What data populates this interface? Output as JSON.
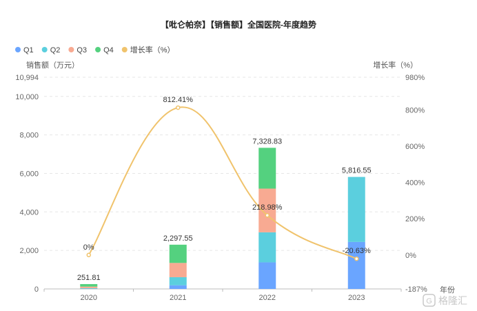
{
  "chart_data": {
    "type": "bar",
    "stacked": true,
    "title": "【吡仑帕奈】【销售额】全国医院-年度趋势",
    "categories": [
      "2020",
      "2021",
      "2022",
      "2023"
    ],
    "series": [
      {
        "name": "Q1",
        "type": "bar",
        "axis": "left",
        "color": "#6aa5ff",
        "values": [
          10,
          190,
          1380,
          2440
        ]
      },
      {
        "name": "Q2",
        "type": "bar",
        "axis": "left",
        "color": "#5bcfde",
        "values": [
          30,
          420,
          1560,
          3376.55
        ]
      },
      {
        "name": "Q3",
        "type": "bar",
        "axis": "left",
        "color": "#f8aa92",
        "values": [
          80,
          740,
          2270,
          0
        ]
      },
      {
        "name": "Q4",
        "type": "bar",
        "axis": "left",
        "color": "#54d17f",
        "values": [
          131.81,
          947.55,
          2118.83,
          0
        ]
      },
      {
        "name": "增长率（%）",
        "type": "line",
        "axis": "right",
        "color": "#f0c36c",
        "values": [
          0,
          812.41,
          218.98,
          -20.63
        ]
      }
    ],
    "totals": [
      251.81,
      2297.55,
      7328.83,
      5816.55
    ],
    "total_labels": [
      "251.81",
      "2,297.55",
      "7,328.83",
      "5,816.55"
    ],
    "growth_labels": [
      "0%",
      "812.41%",
      "218.98%",
      "-20.63%"
    ],
    "ylabel": "销售额（万元）",
    "y2label": "增长率（%）",
    "xlabel": "年份",
    "ylim": [
      0,
      10994
    ],
    "y2lim": [
      -187,
      980
    ],
    "y_ticks": [
      0,
      2000,
      4000,
      6000,
      8000,
      10000,
      10994
    ],
    "y_tick_labels": [
      "0",
      "2,000",
      "4,000",
      "6,000",
      "8,000",
      "10,000",
      "10,994"
    ],
    "y2_ticks": [
      -187,
      0,
      200,
      400,
      600,
      800,
      980
    ],
    "y2_tick_labels": [
      "-187%",
      "0%",
      "200%",
      "400%",
      "600%",
      "800%",
      "980%"
    ],
    "grid": true,
    "legend_position": "top-left"
  },
  "watermark": {
    "text": "格隆汇"
  }
}
